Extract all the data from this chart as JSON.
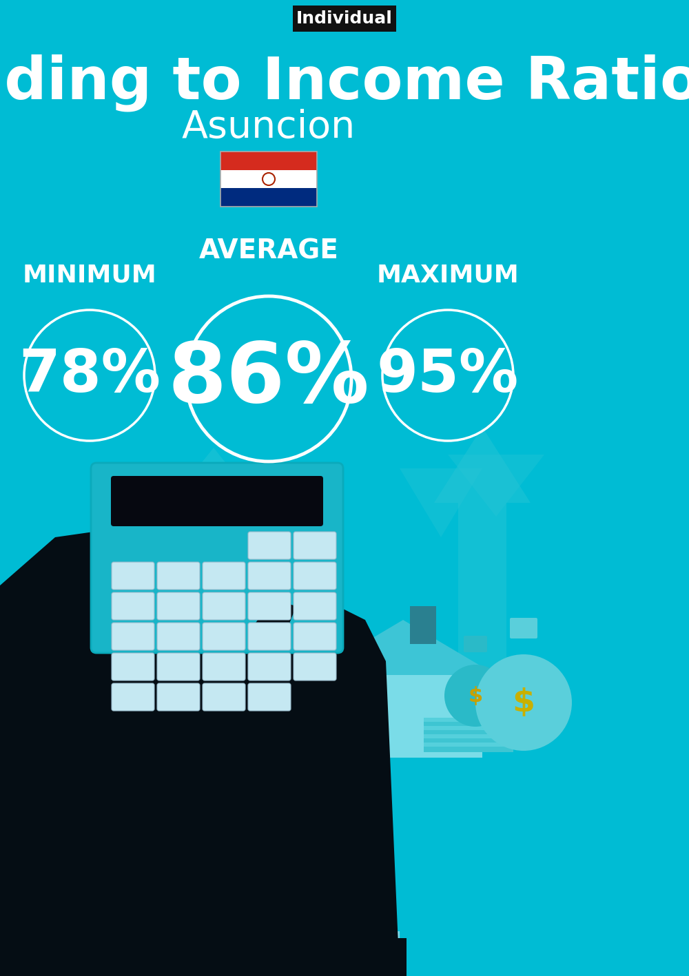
{
  "bg_color": "#00BCD4",
  "title": "Spending to Income Ratio",
  "subtitle": "Asuncion",
  "tag_text": "Individual",
  "tag_bg": "#111111",
  "text_color": "#ffffff",
  "label_average": "AVERAGE",
  "label_minimum": "MINIMUM",
  "label_maximum": "MAXIMUM",
  "value_average": "86%",
  "value_minimum": "78%",
  "value_maximum": "95%",
  "circle_edge_color": "#ffffff",
  "flag_colors": [
    "#D52B1E",
    "#FFFFFF",
    "#002B7F"
  ],
  "arrow_bg_color": "#29C5D5",
  "house_color": "#3DC5D6",
  "house_light_color": "#7ADCE8",
  "money_dark": "#2ABAC8",
  "money_light": "#5ACFDB",
  "hand_color": "#050D14",
  "calc_color": "#18B5C8",
  "calc_display": "#060810",
  "btn_color": "#C5E8F2",
  "cuff_color": "#7DD8E8",
  "chimney_color": "#2A8090",
  "door_color": "#7ADCE8",
  "fig_w": 10.0,
  "fig_h": 14.17,
  "dpi": 100
}
